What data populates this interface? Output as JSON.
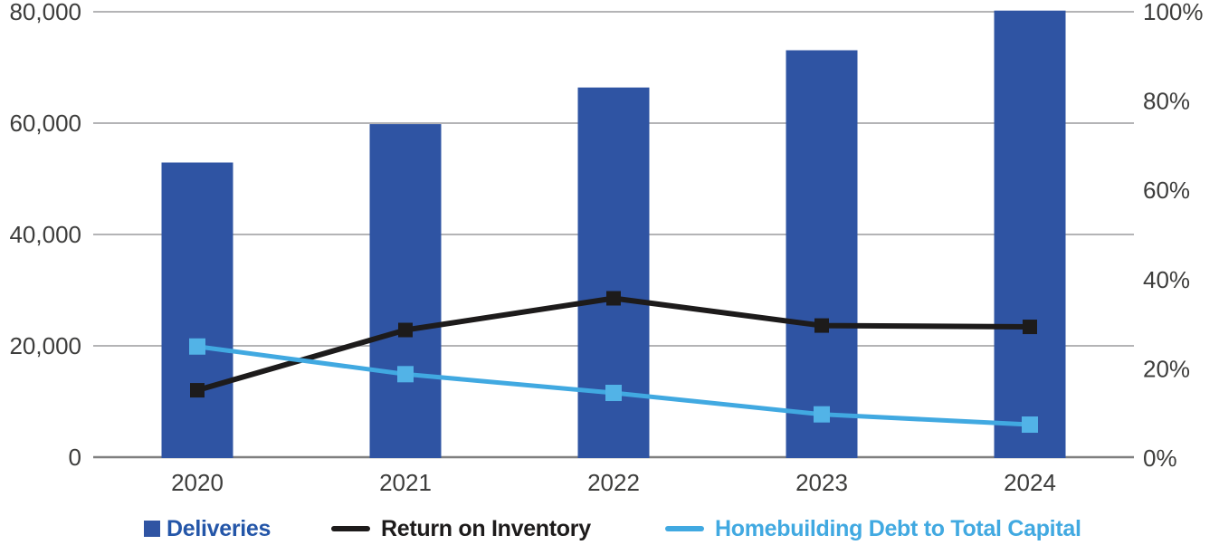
{
  "chart_data": {
    "type": "bar",
    "subtype": "combo-bar-line-dual-axis",
    "title": "",
    "categories": [
      "2020",
      "2021",
      "2022",
      "2023",
      "2024"
    ],
    "series": [
      {
        "name": "Deliveries",
        "type": "bar",
        "axis": "left",
        "color": "#2F54A3",
        "label_color": "#2456A8",
        "values": [
          52925,
          59825,
          66399,
          73087,
          80210
        ]
      },
      {
        "name": "Return on Inventory",
        "type": "line",
        "axis": "right",
        "color": "#1D1B1B",
        "marker": "square",
        "marker_color": "#1D1B1B",
        "label_color": "#1D1B1B",
        "values": [
          15.2,
          28.7,
          35.8,
          29.7,
          29.4
        ]
      },
      {
        "name": "Homebuilding Debt to Total Capital",
        "type": "line",
        "axis": "right",
        "color": "#41A9E1",
        "marker": "square",
        "marker_color": "#52B3E7",
        "label_color": "#41A9E1",
        "values": [
          25.0,
          18.8,
          14.6,
          9.8,
          7.5
        ]
      }
    ],
    "left_axis": {
      "min": 0,
      "max": 80000,
      "ticks": [
        "0",
        "20,000",
        "40,000",
        "60,000",
        "80,000"
      ]
    },
    "right_axis": {
      "min": 0,
      "max": 100,
      "ticks": [
        "0%",
        "20%",
        "40%",
        "60%",
        "80%",
        "100%"
      ]
    },
    "grid": "horizontal",
    "legend_position": "bottom"
  },
  "colors": {
    "background": "#FFFFFF",
    "gridline": "#B4B4B6",
    "axis_line": "#7F7F7F",
    "tick_text": "#3D3D3C"
  }
}
